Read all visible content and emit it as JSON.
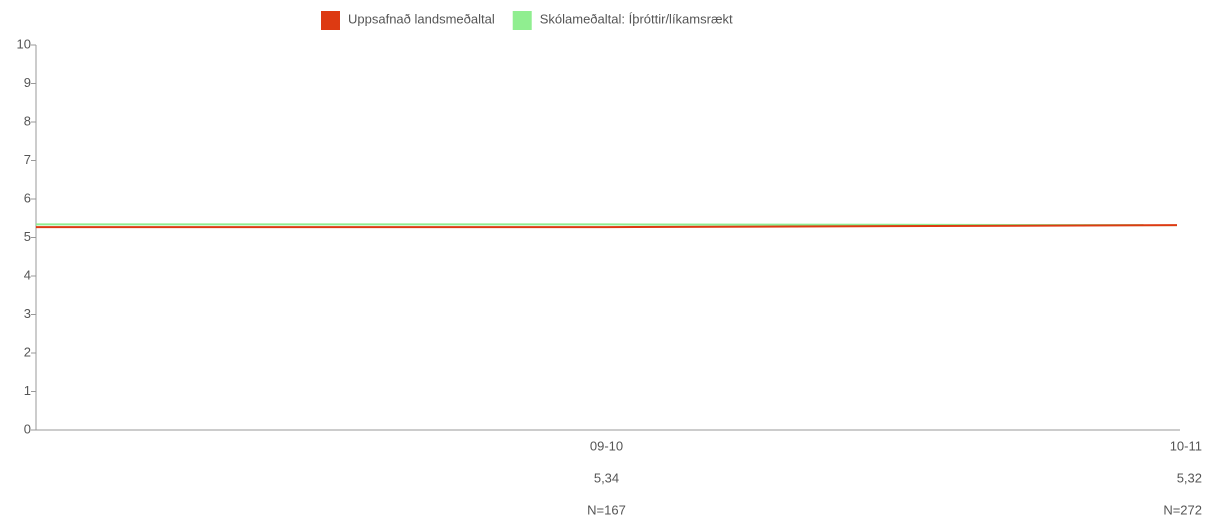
{
  "chart_data": {
    "type": "line",
    "categories": [
      "09-10",
      "10-11"
    ],
    "series": [
      {
        "name": "Skólameðaltal: Íþróttir/líkamsrækt",
        "color": "#90ee90",
        "values": [
          5.34,
          5.32
        ],
        "value_labels": [
          "5,34",
          "5,32"
        ]
      },
      {
        "name": "Uppsafnað landsmeðaltal",
        "color": "#dd3a12",
        "values": [
          5.27,
          5.32
        ]
      }
    ],
    "n_labels": [
      "N=167",
      "N=272"
    ],
    "ylim": [
      0,
      10
    ],
    "yticks": [
      0,
      1,
      2,
      3,
      4,
      5,
      6,
      7,
      8,
      9,
      10
    ],
    "legend": "top"
  }
}
